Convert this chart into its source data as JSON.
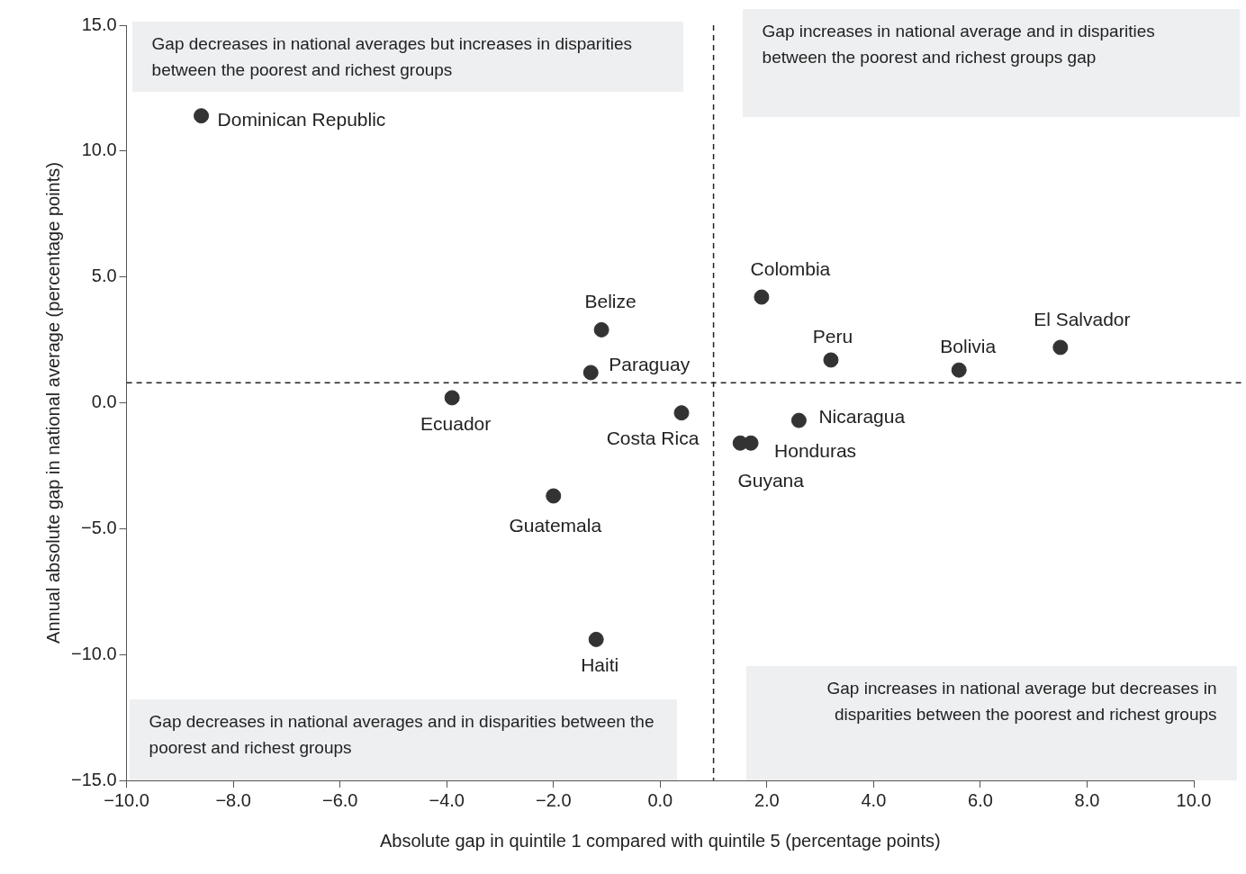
{
  "chart_data": {
    "type": "scatter",
    "xlabel": "Absolute gap in quintile 1 compared with quintile 5 (percentage points)",
    "ylabel": "Annual absolute gap in national average (percentage points)",
    "xlim": [
      -10,
      10
    ],
    "xticks": [
      {
        "value": -10,
        "label": "−10.0"
      },
      {
        "value": -8,
        "label": "−8.0"
      },
      {
        "value": -6,
        "label": "−6.0"
      },
      {
        "value": -4,
        "label": "−4.0"
      },
      {
        "value": -2,
        "label": "−2.0"
      },
      {
        "value": 0,
        "label": "0.0"
      },
      {
        "value": 2,
        "label": "2.0"
      },
      {
        "value": 4,
        "label": "4.0"
      },
      {
        "value": 6,
        "label": "6.0"
      },
      {
        "value": 8,
        "label": "8.0"
      },
      {
        "value": 10,
        "label": "10.0"
      }
    ],
    "ylim": [
      -15,
      15
    ],
    "yticks": [
      {
        "value": -15,
        "label": "−15.0"
      },
      {
        "value": -10,
        "label": "−10.0"
      },
      {
        "value": -5,
        "label": "−5.0"
      },
      {
        "value": 0,
        "label": "0.0"
      },
      {
        "value": 5,
        "label": "5.0"
      },
      {
        "value": 10,
        "label": "10.0"
      },
      {
        "value": 15,
        "label": "15.0"
      }
    ],
    "grid": false,
    "legend": false,
    "marker": "circle",
    "series": [
      {
        "name": "Dominican Republic",
        "color": "#333333",
        "x": [
          -8.6
        ],
        "values": [
          11.4
        ]
      },
      {
        "name": "Belize",
        "color": "#333333",
        "x": [
          -1.1
        ],
        "values": [
          2.9
        ]
      },
      {
        "name": "Paraguay",
        "color": "#333333",
        "x": [
          -1.3
        ],
        "values": [
          1.2
        ]
      },
      {
        "name": "Ecuador",
        "color": "#333333",
        "x": [
          -3.9
        ],
        "values": [
          0.2
        ]
      },
      {
        "name": "Costa Rica",
        "color": "#333333",
        "x": [
          0.4
        ],
        "values": [
          -0.4
        ]
      },
      {
        "name": "Guatemala",
        "color": "#333333",
        "x": [
          -2.0
        ],
        "values": [
          -3.7
        ]
      },
      {
        "name": "Haiti",
        "color": "#333333",
        "x": [
          -1.2
        ],
        "values": [
          -9.4
        ]
      },
      {
        "name": "Colombia",
        "color": "#333333",
        "x": [
          1.9
        ],
        "values": [
          4.2
        ]
      },
      {
        "name": "Peru",
        "color": "#333333",
        "x": [
          3.2
        ],
        "values": [
          1.7
        ]
      },
      {
        "name": "Bolivia",
        "color": "#333333",
        "x": [
          5.6
        ],
        "values": [
          1.3
        ]
      },
      {
        "name": "El Salvador",
        "color": "#333333",
        "x": [
          7.5
        ],
        "values": [
          2.2
        ]
      },
      {
        "name": "Nicaragua",
        "color": "#333333",
        "x": [
          2.6
        ],
        "values": [
          -0.7
        ]
      },
      {
        "name": "Honduras",
        "color": "#333333",
        "x": [
          1.7
        ],
        "values": [
          -1.6
        ]
      },
      {
        "name": "Guyana",
        "color": "#333333",
        "x": [
          1.5
        ],
        "values": [
          -1.6
        ]
      }
    ],
    "ref_lines": [
      {
        "axis": "x",
        "value": 1.0,
        "line_style": "dashed",
        "color": "#222222"
      },
      {
        "axis": "y",
        "value": 0.8,
        "line_style": "dashed",
        "color": "#222222"
      }
    ],
    "annotations": [
      "Gap decreases in national averages but increases in disparities between the poorest and richest groups",
      "Gap increases in national average and in disparities between the poorest and richest groups gap",
      "Gap decreases in national averages and in disparities between the poorest and richest groups",
      "Gap increases in national average but decreases in disparities between the poorest and richest groups"
    ]
  }
}
